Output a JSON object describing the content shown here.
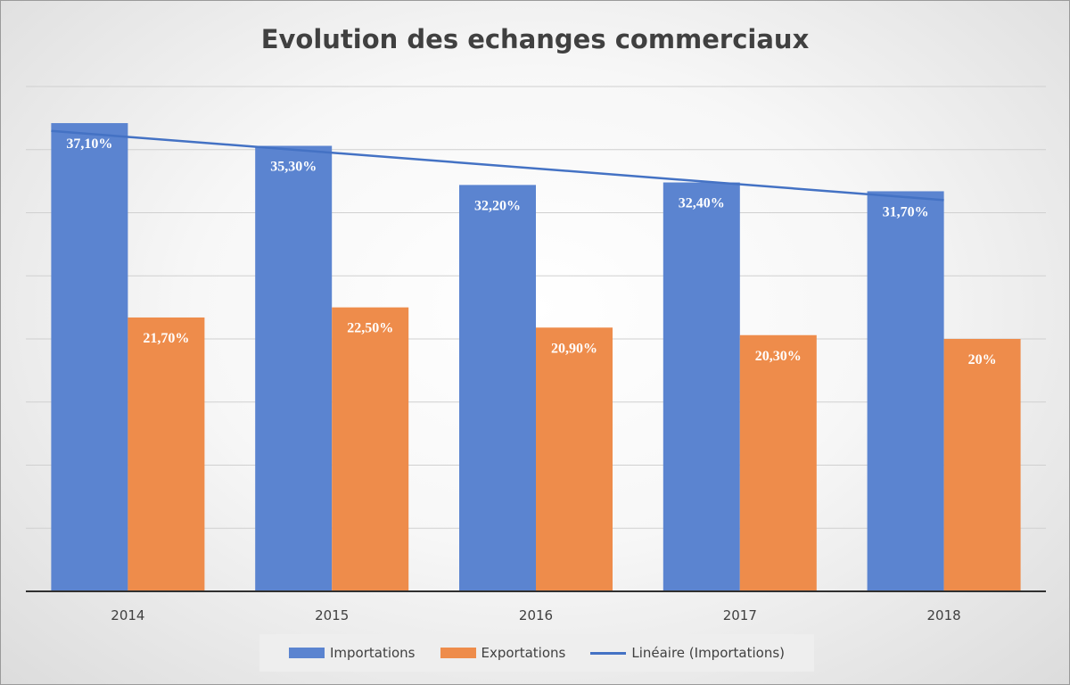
{
  "chart_data": {
    "type": "bar",
    "title": "Evolution des echanges commerciaux",
    "categories": [
      "2014",
      "2015",
      "2016",
      "2017",
      "2018"
    ],
    "series": [
      {
        "name": "Importations",
        "color": "#5b84d0",
        "values": [
          37.1,
          35.3,
          32.2,
          32.4,
          31.7
        ],
        "labels": [
          "37,10%",
          "35,30%",
          "32,20%",
          "32,40%",
          "31,70%"
        ]
      },
      {
        "name": "Exportations",
        "color": "#ee8c4b",
        "values": [
          21.7,
          22.5,
          20.9,
          20.3,
          20.0
        ],
        "labels": [
          "21,70%",
          "22,50%",
          "20,90%",
          "20,30%",
          "20%"
        ]
      }
    ],
    "trendline": {
      "name": "Linéaire  (Importations)",
      "color": "#4472c4",
      "series": "Importations",
      "type": "linear"
    },
    "ylim": [
      0,
      40
    ],
    "grid": true,
    "legend_position": "bottom"
  }
}
